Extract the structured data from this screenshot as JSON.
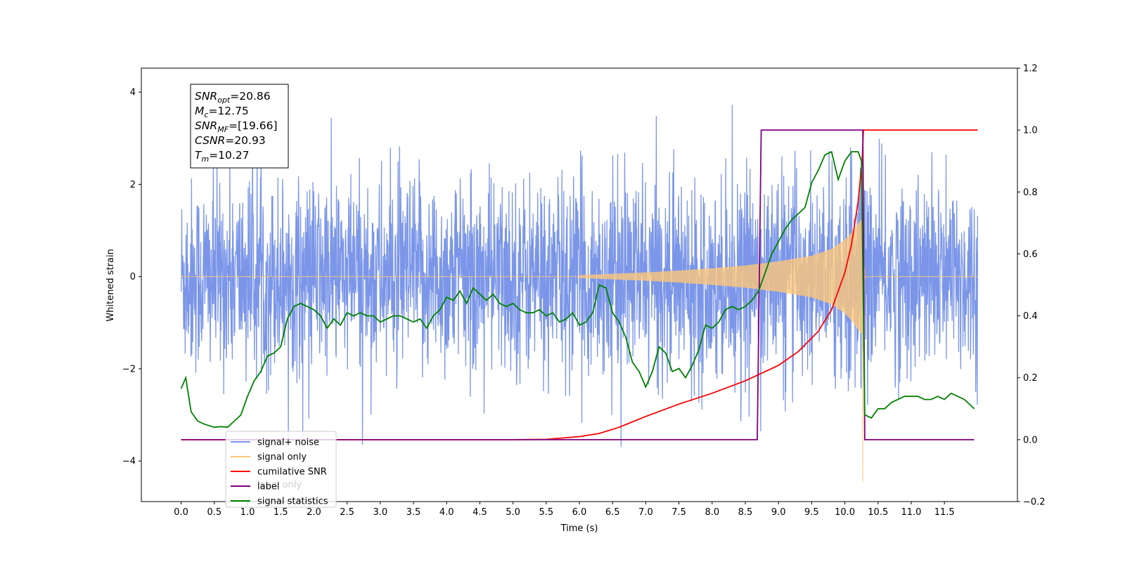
{
  "chart_data": {
    "type": "line",
    "xlabel": "Time (s)",
    "ylabel": "Whitened strain",
    "xlim": [
      -0.6,
      12.6
    ],
    "ylim": [
      -4.88,
      4.52
    ],
    "y2lim": [
      -0.2,
      1.2
    ],
    "xticks": [
      "0.0",
      "0.5",
      "1.0",
      "1.5",
      "2.0",
      "2.5",
      "3.0",
      "3.5",
      "4.0",
      "4.5",
      "5.0",
      "5.5",
      "6.0",
      "6.5",
      "7.0",
      "7.5",
      "8.0",
      "8.5",
      "9.0",
      "9.5",
      "10.0",
      "10.5",
      "11.0",
      "11.5"
    ],
    "yticks": [
      "−4",
      "−2",
      "0",
      "2",
      "4"
    ],
    "y2ticks": [
      "−0.2",
      "0.0",
      "0.2",
      "0.4",
      "0.6",
      "0.8",
      "1.0",
      "1.2"
    ],
    "annotation": [
      {
        "base": "SNR",
        "sub": "opt",
        "value": "=20.86"
      },
      {
        "base": "M",
        "sub": "c",
        "value": "=12.75"
      },
      {
        "base": "SNR",
        "sub": "MF",
        "value": "=[19.66]"
      },
      {
        "base": "CSNR",
        "sub": "",
        "value": "=20.93"
      },
      {
        "base": "T",
        "sub": "m",
        "value": "=10.27"
      }
    ],
    "legend": {
      "placement": "lower left",
      "entries": [
        {
          "label": "signal+ noise",
          "color": "#7b96e8"
        },
        {
          "label": "signal only",
          "color": "#fcc77a"
        },
        {
          "label": "cumilative SNR",
          "color": "#ff0000"
        },
        {
          "label": "label",
          "color": "#800080"
        },
        {
          "label": "signal statistics",
          "color": "#008000"
        }
      ],
      "ghost_labels": [
        "label only"
      ]
    },
    "series": [
      {
        "name": "signal+ noise",
        "axis": "left",
        "color": "#7b96e8",
        "x_range": [
          0.0,
          12.0
        ],
        "envelope_typical": 2.2,
        "y_max": 4.12,
        "y_min": -3.65
      },
      {
        "name": "signal only",
        "axis": "left",
        "color": "#fcc77a",
        "chirp_start": 6.0,
        "merger_time": 10.27,
        "amplitude_peak": 1.2,
        "y_min": -4.45,
        "envelope": {
          "x": [
            6.0,
            6.5,
            7.0,
            7.5,
            8.0,
            8.5,
            9.0,
            9.5,
            9.8,
            10.0,
            10.1,
            10.2,
            10.26,
            10.3
          ],
          "y": [
            0.03,
            0.06,
            0.09,
            0.13,
            0.18,
            0.24,
            0.33,
            0.45,
            0.6,
            0.8,
            0.95,
            1.15,
            1.25,
            0.05
          ]
        }
      },
      {
        "name": "cumilative SNR",
        "axis": "right",
        "color": "#ff0000",
        "x": [
          0.0,
          5.0,
          5.5,
          6.0,
          6.3,
          6.6,
          7.0,
          7.5,
          8.0,
          8.5,
          9.0,
          9.3,
          9.6,
          9.8,
          10.0,
          10.1,
          10.2,
          10.26,
          10.28,
          12.0
        ],
        "y": [
          0.0,
          0.0,
          0.001,
          0.01,
          0.02,
          0.04,
          0.075,
          0.115,
          0.15,
          0.19,
          0.24,
          0.285,
          0.35,
          0.42,
          0.54,
          0.63,
          0.77,
          0.9,
          1.0,
          1.0
        ]
      },
      {
        "name": "label",
        "axis": "right",
        "color": "#800080",
        "x": [
          0.0,
          8.68,
          8.74,
          10.27,
          10.3,
          11.95
        ],
        "y": [
          0.0,
          0.0,
          1.0,
          1.0,
          0.0,
          0.0
        ]
      },
      {
        "name": "signal statistics",
        "axis": "right",
        "color": "#008000",
        "x": [
          0.0,
          0.07,
          0.15,
          0.25,
          0.35,
          0.5,
          0.6,
          0.7,
          0.8,
          0.9,
          1.0,
          1.1,
          1.2,
          1.3,
          1.4,
          1.5,
          1.6,
          1.7,
          1.8,
          1.9,
          2.0,
          2.1,
          2.2,
          2.3,
          2.4,
          2.5,
          2.6,
          2.7,
          2.8,
          2.9,
          3.0,
          3.1,
          3.2,
          3.3,
          3.4,
          3.5,
          3.6,
          3.7,
          3.8,
          3.9,
          4.0,
          4.1,
          4.2,
          4.3,
          4.4,
          4.5,
          4.6,
          4.7,
          4.8,
          4.9,
          5.0,
          5.1,
          5.2,
          5.3,
          5.4,
          5.5,
          5.6,
          5.7,
          5.8,
          5.9,
          6.0,
          6.1,
          6.2,
          6.3,
          6.4,
          6.5,
          6.6,
          6.7,
          6.8,
          6.9,
          7.0,
          7.1,
          7.2,
          7.3,
          7.4,
          7.5,
          7.6,
          7.7,
          7.8,
          7.9,
          8.0,
          8.1,
          8.2,
          8.3,
          8.4,
          8.5,
          8.6,
          8.7,
          8.8,
          8.9,
          9.0,
          9.1,
          9.2,
          9.3,
          9.4,
          9.5,
          9.6,
          9.7,
          9.8,
          9.9,
          10.0,
          10.1,
          10.2,
          10.25,
          10.3,
          10.4,
          10.5,
          10.6,
          10.7,
          10.8,
          10.9,
          11.0,
          11.1,
          11.2,
          11.3,
          11.4,
          11.5,
          11.6,
          11.7,
          11.8,
          11.9,
          11.95
        ],
        "y": [
          0.165,
          0.2,
          0.09,
          0.06,
          0.05,
          0.04,
          0.042,
          0.04,
          0.06,
          0.08,
          0.14,
          0.19,
          0.22,
          0.27,
          0.28,
          0.3,
          0.39,
          0.43,
          0.44,
          0.43,
          0.42,
          0.4,
          0.36,
          0.39,
          0.37,
          0.41,
          0.4,
          0.41,
          0.4,
          0.4,
          0.38,
          0.39,
          0.4,
          0.4,
          0.39,
          0.38,
          0.39,
          0.36,
          0.4,
          0.42,
          0.46,
          0.45,
          0.48,
          0.44,
          0.49,
          0.47,
          0.45,
          0.47,
          0.44,
          0.43,
          0.44,
          0.42,
          0.41,
          0.41,
          0.42,
          0.4,
          0.41,
          0.38,
          0.39,
          0.41,
          0.37,
          0.38,
          0.41,
          0.5,
          0.49,
          0.41,
          0.38,
          0.33,
          0.25,
          0.22,
          0.17,
          0.22,
          0.3,
          0.28,
          0.22,
          0.23,
          0.2,
          0.24,
          0.29,
          0.37,
          0.36,
          0.38,
          0.42,
          0.43,
          0.42,
          0.43,
          0.45,
          0.48,
          0.54,
          0.6,
          0.64,
          0.68,
          0.71,
          0.73,
          0.75,
          0.83,
          0.87,
          0.92,
          0.93,
          0.84,
          0.9,
          0.93,
          0.93,
          0.9,
          0.08,
          0.07,
          0.1,
          0.1,
          0.12,
          0.13,
          0.14,
          0.14,
          0.14,
          0.13,
          0.13,
          0.14,
          0.13,
          0.15,
          0.14,
          0.13,
          0.11,
          0.1
        ]
      }
    ]
  }
}
